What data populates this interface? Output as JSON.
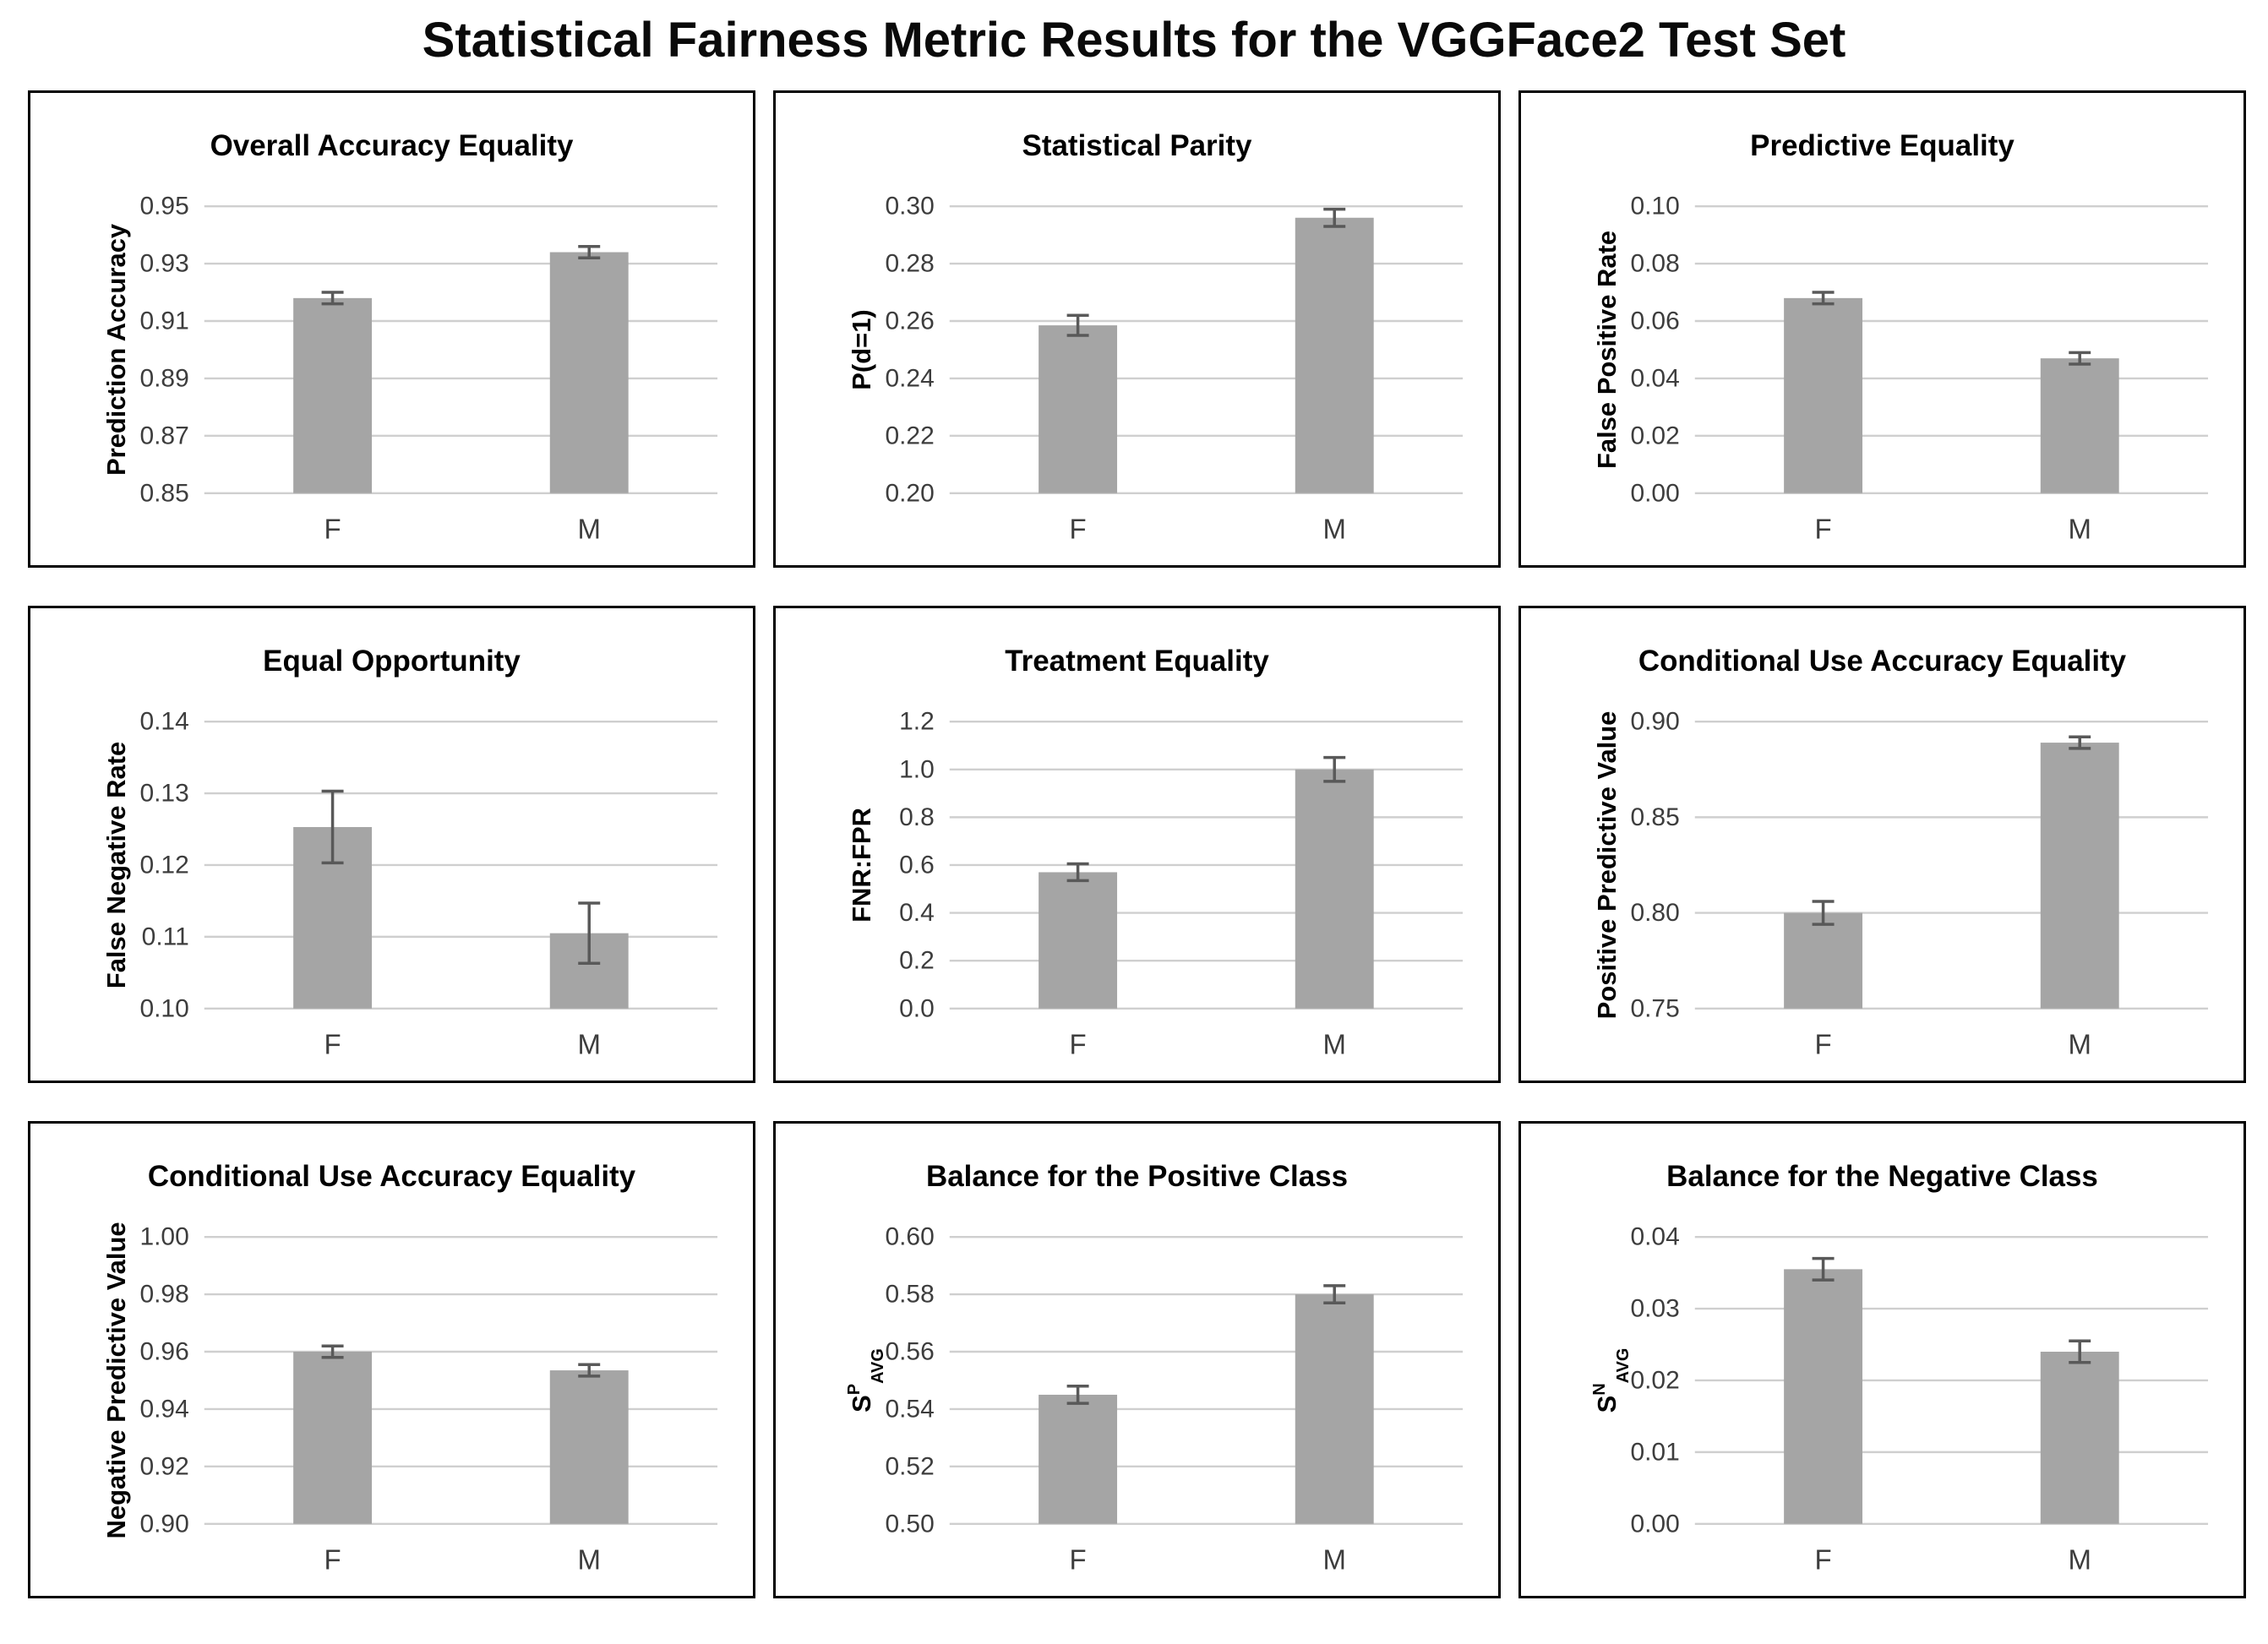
{
  "page_title": "Statistical Fairness Metric Results for the VGGFace2 Test Set",
  "colors": {
    "bar": "#a5a5a5",
    "error_bar": "#595959",
    "gridline": "#cfcfcf",
    "tick_label": "#3d3d3d",
    "category_label": "#3d3d3d",
    "chart_title": "#000000",
    "axis_label": "#000000",
    "panel_border": "#000000"
  },
  "chart_data": [
    {
      "type": "bar",
      "title": "Overall Accuracy Equality",
      "ylabel": "Prediction Accuracy",
      "categories": [
        "F",
        "M"
      ],
      "values": [
        0.918,
        0.934
      ],
      "errors": [
        0.002,
        0.002
      ],
      "ylim": [
        0.85,
        0.95
      ],
      "yticks": [
        0.85,
        0.87,
        0.89,
        0.91,
        0.93,
        0.95
      ],
      "ytick_labels": [
        "0.85",
        "0.87",
        "0.89",
        "0.91",
        "0.93",
        "0.95"
      ],
      "grid": true,
      "legend": "none"
    },
    {
      "type": "bar",
      "title": "Statistical Parity",
      "ylabel": "P(d=1)",
      "categories": [
        "F",
        "M"
      ],
      "values": [
        0.2585,
        0.296
      ],
      "errors": [
        0.0035,
        0.003
      ],
      "ylim": [
        0.2,
        0.3
      ],
      "yticks": [
        0.2,
        0.22,
        0.24,
        0.26,
        0.28,
        0.3
      ],
      "ytick_labels": [
        "0.20",
        "0.22",
        "0.24",
        "0.26",
        "0.28",
        "0.30"
      ],
      "grid": true,
      "legend": "none"
    },
    {
      "type": "bar",
      "title": "Predictive Equality",
      "ylabel": "False Positive Rate",
      "categories": [
        "F",
        "M"
      ],
      "values": [
        0.068,
        0.047
      ],
      "errors": [
        0.002,
        0.002
      ],
      "ylim": [
        0.0,
        0.1
      ],
      "yticks": [
        0.0,
        0.02,
        0.04,
        0.06,
        0.08,
        0.1
      ],
      "ytick_labels": [
        "0.00",
        "0.02",
        "0.04",
        "0.06",
        "0.08",
        "0.10"
      ],
      "grid": true,
      "legend": "none"
    },
    {
      "type": "bar",
      "title": "Equal Opportunity",
      "ylabel": "False Negative Rate",
      "categories": [
        "F",
        "M"
      ],
      "values": [
        0.1253,
        0.1105
      ],
      "errors": [
        0.005,
        0.0042
      ],
      "ylim": [
        0.1,
        0.14
      ],
      "yticks": [
        0.1,
        0.11,
        0.12,
        0.13,
        0.14
      ],
      "ytick_labels": [
        "0.10",
        "0.11",
        "0.12",
        "0.13",
        "0.14"
      ],
      "grid": true,
      "legend": "none"
    },
    {
      "type": "bar",
      "title": "Treatment Equality",
      "ylabel": "FNR:FPR",
      "categories": [
        "F",
        "M"
      ],
      "values": [
        0.57,
        1.0
      ],
      "errors": [
        0.035,
        0.05
      ],
      "ylim": [
        0.0,
        1.2
      ],
      "yticks": [
        0.0,
        0.2,
        0.4,
        0.6,
        0.8,
        1.0,
        1.2
      ],
      "ytick_labels": [
        "0.0",
        "0.2",
        "0.4",
        "0.6",
        "0.8",
        "1.0",
        "1.2"
      ],
      "grid": true,
      "legend": "none"
    },
    {
      "type": "bar",
      "title": "Conditional Use Accuracy Equality",
      "ylabel": "Positive Predictive Value",
      "categories": [
        "F",
        "M"
      ],
      "values": [
        0.8,
        0.889
      ],
      "errors": [
        0.006,
        0.003
      ],
      "ylim": [
        0.75,
        0.9
      ],
      "yticks": [
        0.75,
        0.8,
        0.85,
        0.9
      ],
      "ytick_labels": [
        "0.75",
        "0.80",
        "0.85",
        "0.90"
      ],
      "grid": true,
      "legend": "none"
    },
    {
      "type": "bar",
      "title": "Conditional Use Accuracy Equality",
      "ylabel": "Negative Predictive Value",
      "categories": [
        "F",
        "M"
      ],
      "values": [
        0.96,
        0.9535
      ],
      "errors": [
        0.002,
        0.002
      ],
      "ylim": [
        0.9,
        1.0
      ],
      "yticks": [
        0.9,
        0.92,
        0.94,
        0.96,
        0.98,
        1.0
      ],
      "ytick_labels": [
        "0.90",
        "0.92",
        "0.94",
        "0.96",
        "0.98",
        "1.00"
      ],
      "grid": true,
      "legend": "none"
    },
    {
      "type": "bar",
      "title": "Balance for the Positive Class",
      "ylabel": "S^P_AVG",
      "ylabel_rich": {
        "base": "S",
        "sup": "P",
        "sub": "AVG"
      },
      "categories": [
        "F",
        "M"
      ],
      "values": [
        0.545,
        0.58
      ],
      "errors": [
        0.003,
        0.003
      ],
      "ylim": [
        0.5,
        0.6
      ],
      "yticks": [
        0.5,
        0.52,
        0.54,
        0.56,
        0.58,
        0.6
      ],
      "ytick_labels": [
        "0.50",
        "0.52",
        "0.54",
        "0.56",
        "0.58",
        "0.60"
      ],
      "grid": true,
      "legend": "none"
    },
    {
      "type": "bar",
      "title": "Balance for the Negative Class",
      "ylabel": "S^N_AVG",
      "ylabel_rich": {
        "base": "S",
        "sup": "N",
        "sub": "AVG"
      },
      "categories": [
        "F",
        "M"
      ],
      "values": [
        0.0355,
        0.024
      ],
      "errors": [
        0.0015,
        0.0015
      ],
      "ylim": [
        0.0,
        0.04
      ],
      "yticks": [
        0.0,
        0.01,
        0.02,
        0.03,
        0.04
      ],
      "ytick_labels": [
        "0.00",
        "0.01",
        "0.02",
        "0.03",
        "0.04"
      ],
      "grid": true,
      "legend": "none"
    }
  ]
}
